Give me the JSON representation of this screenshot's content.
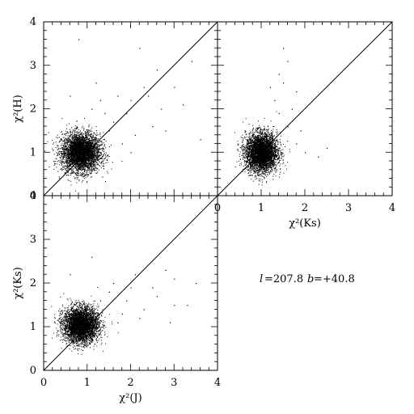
{
  "chart_data": [
    {
      "id": "h_vs_j",
      "type": "scatter",
      "xlabel": "",
      "ylabel": "χ²(H)",
      "xlim": [
        0,
        4
      ],
      "ylim": [
        0,
        4
      ],
      "x_ticks": [
        "0",
        "1",
        "2",
        "3",
        "4"
      ],
      "y_ticks": [
        "0",
        "1",
        "2",
        "3",
        "4"
      ],
      "x_tick_labels_visible": false,
      "reference_line": "y = x",
      "cluster": {
        "center": [
          0.85,
          1.0
        ],
        "spread": [
          0.22,
          0.22
        ],
        "points": 4200
      },
      "outliers": [
        [
          1.6,
          1.7
        ],
        [
          2.0,
          2.2
        ],
        [
          2.3,
          2.5
        ],
        [
          1.8,
          1.2
        ],
        [
          2.6,
          2.9
        ],
        [
          2.1,
          1.4
        ],
        [
          3.2,
          2.1
        ],
        [
          0.6,
          2.3
        ],
        [
          1.2,
          2.6
        ],
        [
          0.8,
          3.6
        ],
        [
          2.5,
          1.6
        ],
        [
          1.9,
          1.9
        ],
        [
          1.4,
          1.9
        ],
        [
          2.2,
          3.4
        ],
        [
          3.6,
          1.3
        ],
        [
          2.8,
          1.5
        ],
        [
          1.7,
          2.3
        ],
        [
          2.0,
          1.0
        ],
        [
          3.0,
          2.5
        ],
        [
          2.4,
          2.3
        ],
        [
          1.5,
          1.5
        ],
        [
          1.3,
          2.2
        ],
        [
          2.7,
          2.0
        ],
        [
          3.4,
          3.1
        ],
        [
          1.1,
          2.0
        ]
      ]
    },
    {
      "id": "h_vs_ks",
      "type": "scatter",
      "xlabel": "χ²(Ks)",
      "ylabel": "",
      "xlim": [
        0,
        4
      ],
      "ylim": [
        0,
        4
      ],
      "x_ticks": [
        "0",
        "1",
        "2",
        "3",
        "4"
      ],
      "y_ticks": [],
      "reference_line": "y = x",
      "cluster": {
        "center": [
          1.0,
          1.0
        ],
        "spread": [
          0.18,
          0.22
        ],
        "points": 4200
      },
      "outliers": [
        [
          1.5,
          2.6
        ],
        [
          1.6,
          3.1
        ],
        [
          1.3,
          2.2
        ],
        [
          1.8,
          1.2
        ],
        [
          2.0,
          1.0
        ],
        [
          1.4,
          1.9
        ],
        [
          1.7,
          2.0
        ],
        [
          1.5,
          3.4
        ],
        [
          2.3,
          0.9
        ],
        [
          1.2,
          2.5
        ],
        [
          1.9,
          1.5
        ],
        [
          1.6,
          1.6
        ],
        [
          1.4,
          2.8
        ],
        [
          2.5,
          1.1
        ],
        [
          1.8,
          2.4
        ]
      ]
    },
    {
      "id": "ks_vs_j",
      "type": "scatter",
      "xlabel": "χ²(J)",
      "ylabel": "χ²(Ks)",
      "xlim": [
        0,
        4
      ],
      "ylim": [
        0,
        4
      ],
      "x_ticks": [
        "0",
        "1",
        "2",
        "3",
        "4"
      ],
      "y_ticks": [
        "0",
        "1",
        "2",
        "3",
        "4"
      ],
      "reference_line": "y = x",
      "cluster": {
        "center": [
          0.85,
          1.05
        ],
        "spread": [
          0.2,
          0.2
        ],
        "points": 4200
      },
      "outliers": [
        [
          1.8,
          1.3
        ],
        [
          2.3,
          1.4
        ],
        [
          1.5,
          1.8
        ],
        [
          2.0,
          1.9
        ],
        [
          2.6,
          1.7
        ],
        [
          3.0,
          1.5
        ],
        [
          2.8,
          2.3
        ],
        [
          2.9,
          1.1
        ],
        [
          1.9,
          1.6
        ],
        [
          0.6,
          2.2
        ],
        [
          1.1,
          2.6
        ],
        [
          1.6,
          2.0
        ],
        [
          2.2,
          1.2
        ],
        [
          3.3,
          1.5
        ],
        [
          3.5,
          2.0
        ],
        [
          2.5,
          1.9
        ],
        [
          1.3,
          1.6
        ],
        [
          2.1,
          2.2
        ],
        [
          1.7,
          1.1
        ],
        [
          3.0,
          2.1
        ]
      ]
    }
  ],
  "annotation": {
    "l_symbol": "l",
    "l_text": "=207.8",
    "b_symbol": "b",
    "b_text": "=+40.8"
  },
  "colors": {
    "points": "#000000",
    "axes": "#000000",
    "background": "#ffffff"
  }
}
